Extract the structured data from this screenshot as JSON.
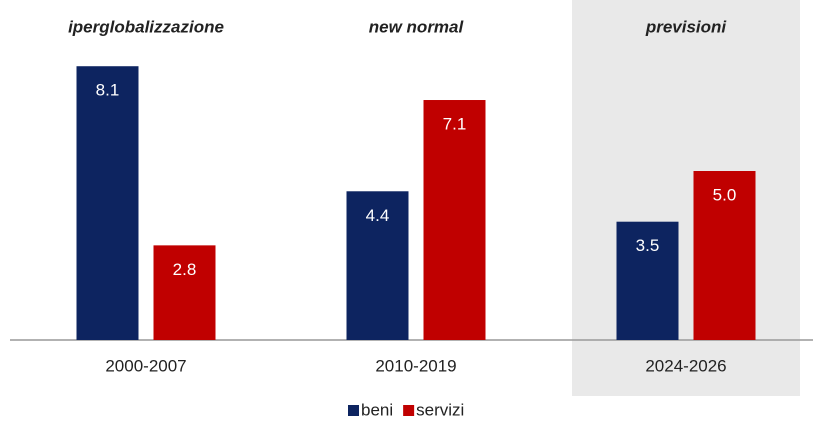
{
  "chart_data": {
    "type": "bar",
    "categories": [
      "2000-2007",
      "2010-2019",
      "2024-2026"
    ],
    "annotations": [
      "iperglobalizzazione",
      "new normal",
      "previsioni"
    ],
    "series": [
      {
        "name": "beni",
        "color": "#0d2460",
        "values": [
          8.1,
          4.4,
          3.5
        ],
        "value_labels": [
          "8.1",
          "4.4",
          "3.5"
        ]
      },
      {
        "name": "servizi",
        "color": "#c00000",
        "values": [
          2.8,
          7.1,
          5.0
        ],
        "value_labels": [
          "2.8",
          "7.1",
          "5.0"
        ]
      }
    ]
  }
}
